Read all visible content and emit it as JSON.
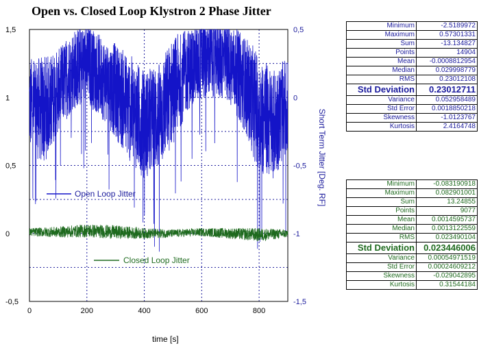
{
  "title": "Open vs. Closed Loop Klystron 2 Phase Jitter",
  "xlabel": "time [s]",
  "y2label": "Short Term Jitter [Deg. RF]",
  "colors": {
    "open": "#1414c8",
    "closed": "#1e6a1e",
    "axis_right": "#1a1a9c",
    "grid": "#1a1a9c"
  },
  "chart_data": {
    "type": "line",
    "title": "Open vs. Closed Loop Klystron 2 Phase Jitter",
    "xlabel": "time [s]",
    "ylabel": "",
    "y2label": "Short Term Jitter [Deg. RF]",
    "xlim": [
      0,
      900
    ],
    "ylim": [
      -0.5,
      1.5
    ],
    "y2lim": [
      -1.5,
      0.5
    ],
    "grid": true,
    "xticks": [
      "0",
      "200",
      "400",
      "600",
      "800"
    ],
    "yticks": [
      "-0,5",
      "0",
      "0,5",
      "1",
      "1,5"
    ],
    "y2ticks": [
      "-1,5",
      "-1",
      "-0,5",
      "0",
      "0,5"
    ],
    "series": [
      {
        "name": "Open Loop Jitter",
        "axis": "right",
        "x": [
          0,
          50,
          100,
          150,
          200,
          250,
          300,
          350,
          400,
          450,
          500,
          550,
          600,
          650,
          700,
          750,
          800,
          850,
          900
        ],
        "center": [
          -0.05,
          -0.1,
          0.05,
          0.2,
          0.25,
          0.15,
          0.05,
          -0.08,
          -0.2,
          -0.15,
          0.05,
          0.2,
          0.28,
          0.3,
          0.25,
          0.1,
          -0.12,
          -0.2,
          -0.05
        ],
        "amplitude": [
          0.35,
          0.4,
          0.3,
          0.3,
          0.3,
          0.3,
          0.35,
          0.4,
          0.4,
          0.4,
          0.4,
          0.3,
          0.3,
          0.3,
          0.3,
          0.35,
          0.45,
          0.4,
          0.35
        ]
      },
      {
        "name": "Closed Loop Jitter",
        "axis": "left",
        "x": [
          0,
          100,
          200,
          300,
          400,
          500,
          600,
          700,
          800,
          900
        ],
        "center": [
          0.01,
          0.01,
          0.02,
          0.01,
          0.0,
          0.0,
          0.01,
          0.0,
          -0.01,
          0.0
        ],
        "amplitude": [
          0.03,
          0.04,
          0.05,
          0.05,
          0.04,
          0.03,
          0.03,
          0.04,
          0.05,
          0.03
        ]
      }
    ],
    "legend": [
      {
        "label": "Open Loop Jitter",
        "placement": "left-middle"
      },
      {
        "label": "Closed Loop Jitter",
        "placement": "left-lower"
      }
    ]
  },
  "stats_open": [
    {
      "label": "Minimum",
      "value": "-2.5189972"
    },
    {
      "label": "Maximum",
      "value": "0.57301331"
    },
    {
      "label": "Sum",
      "value": "-13.134827"
    },
    {
      "label": "Points",
      "value": "14904"
    },
    {
      "label": "Mean",
      "value": "-0.0008812954"
    },
    {
      "label": "Median",
      "value": "0.029998779"
    },
    {
      "label": "RMS",
      "value": "0.23012108"
    },
    {
      "label": "Std Deviation",
      "value": "0.23012711",
      "big": true
    },
    {
      "label": "Variance",
      "value": "0.052958489"
    },
    {
      "label": "Std Error",
      "value": "0.0018850218"
    },
    {
      "label": "Skewness",
      "value": "-1.0123767"
    },
    {
      "label": "Kurtosis",
      "value": "2.4164748"
    }
  ],
  "stats_closed": [
    {
      "label": "Minimum",
      "value": "-0.083190918"
    },
    {
      "label": "Maximum",
      "value": "0.082901001"
    },
    {
      "label": "Sum",
      "value": "13.24855"
    },
    {
      "label": "Points",
      "value": "9077"
    },
    {
      "label": "Mean",
      "value": "0.0014595737"
    },
    {
      "label": "Median",
      "value": "0.0013122559"
    },
    {
      "label": "RMS",
      "value": "0.023490104"
    },
    {
      "label": "Std Deviation",
      "value": "0.023446006",
      "big": true
    },
    {
      "label": "Variance",
      "value": "0.00054971519"
    },
    {
      "label": "Std Error",
      "value": "0.00024609212"
    },
    {
      "label": "Skewness",
      "value": "-0.029042895"
    },
    {
      "label": "Kurtosis",
      "value": "0.31544184"
    }
  ]
}
